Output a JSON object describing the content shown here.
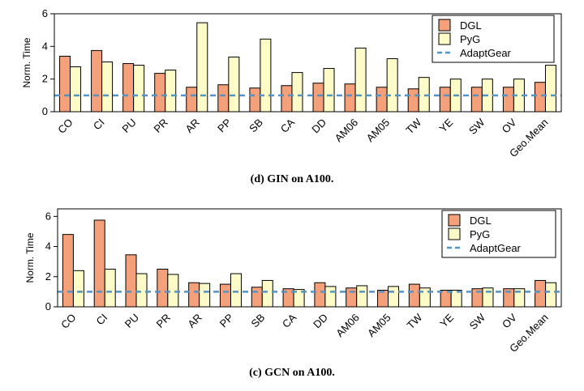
{
  "colors": {
    "dgl": "#f4a07a",
    "pyg": "#fdfcc8",
    "adaptgear": "#4f95cd",
    "axis": "#000000"
  },
  "chart_data": [
    {
      "type": "bar",
      "caption": "(d) GIN on A100.",
      "ylabel": "Norm. Time",
      "ylim": [
        0,
        6
      ],
      "yticks": [
        0,
        2,
        4,
        6
      ],
      "categories": [
        "CO",
        "CI",
        "PU",
        "PR",
        "AR",
        "PP",
        "SB",
        "CA",
        "DD",
        "AM06",
        "AM05",
        "TW",
        "YE",
        "SW",
        "OV",
        "Geo.Mean"
      ],
      "series": [
        {
          "name": "DGL",
          "values": [
            3.4,
            3.75,
            2.95,
            2.35,
            1.5,
            1.65,
            1.45,
            1.6,
            1.75,
            1.7,
            1.5,
            1.4,
            1.5,
            1.5,
            1.5,
            1.8
          ]
        },
        {
          "name": "PyG",
          "values": [
            2.75,
            3.05,
            2.85,
            2.55,
            5.45,
            3.35,
            4.45,
            2.4,
            2.65,
            3.9,
            3.25,
            2.1,
            2.0,
            2.0,
            2.0,
            2.85
          ]
        }
      ],
      "reference_line": {
        "name": "AdaptGear",
        "value": 1.0,
        "style": "dashed"
      },
      "legend": [
        "DGL",
        "PyG",
        "AdaptGear"
      ],
      "legend_position": "top-right"
    },
    {
      "type": "bar",
      "caption": "(c) GCN on A100.",
      "ylabel": "Norm. Time",
      "ylim": [
        0,
        6.5
      ],
      "yticks": [
        0,
        2,
        4,
        6
      ],
      "categories": [
        "CO",
        "CI",
        "PU",
        "PR",
        "AR",
        "PP",
        "SB",
        "CA",
        "DD",
        "AM06",
        "AM05",
        "TW",
        "YE",
        "SW",
        "OV",
        "Geo.Mean"
      ],
      "series": [
        {
          "name": "DGL",
          "values": [
            4.8,
            5.75,
            3.45,
            2.5,
            1.6,
            1.5,
            1.3,
            1.2,
            1.6,
            1.25,
            1.1,
            1.5,
            1.1,
            1.2,
            1.2,
            1.75
          ]
        },
        {
          "name": "PyG",
          "values": [
            2.4,
            2.5,
            2.2,
            2.15,
            1.55,
            2.2,
            1.75,
            1.15,
            1.35,
            1.4,
            1.35,
            1.25,
            1.1,
            1.25,
            1.2,
            1.6
          ]
        }
      ],
      "reference_line": {
        "name": "AdaptGear",
        "value": 1.0,
        "style": "dashed"
      },
      "legend": [
        "DGL",
        "PyG",
        "AdaptGear"
      ],
      "legend_position": "top-right"
    }
  ]
}
